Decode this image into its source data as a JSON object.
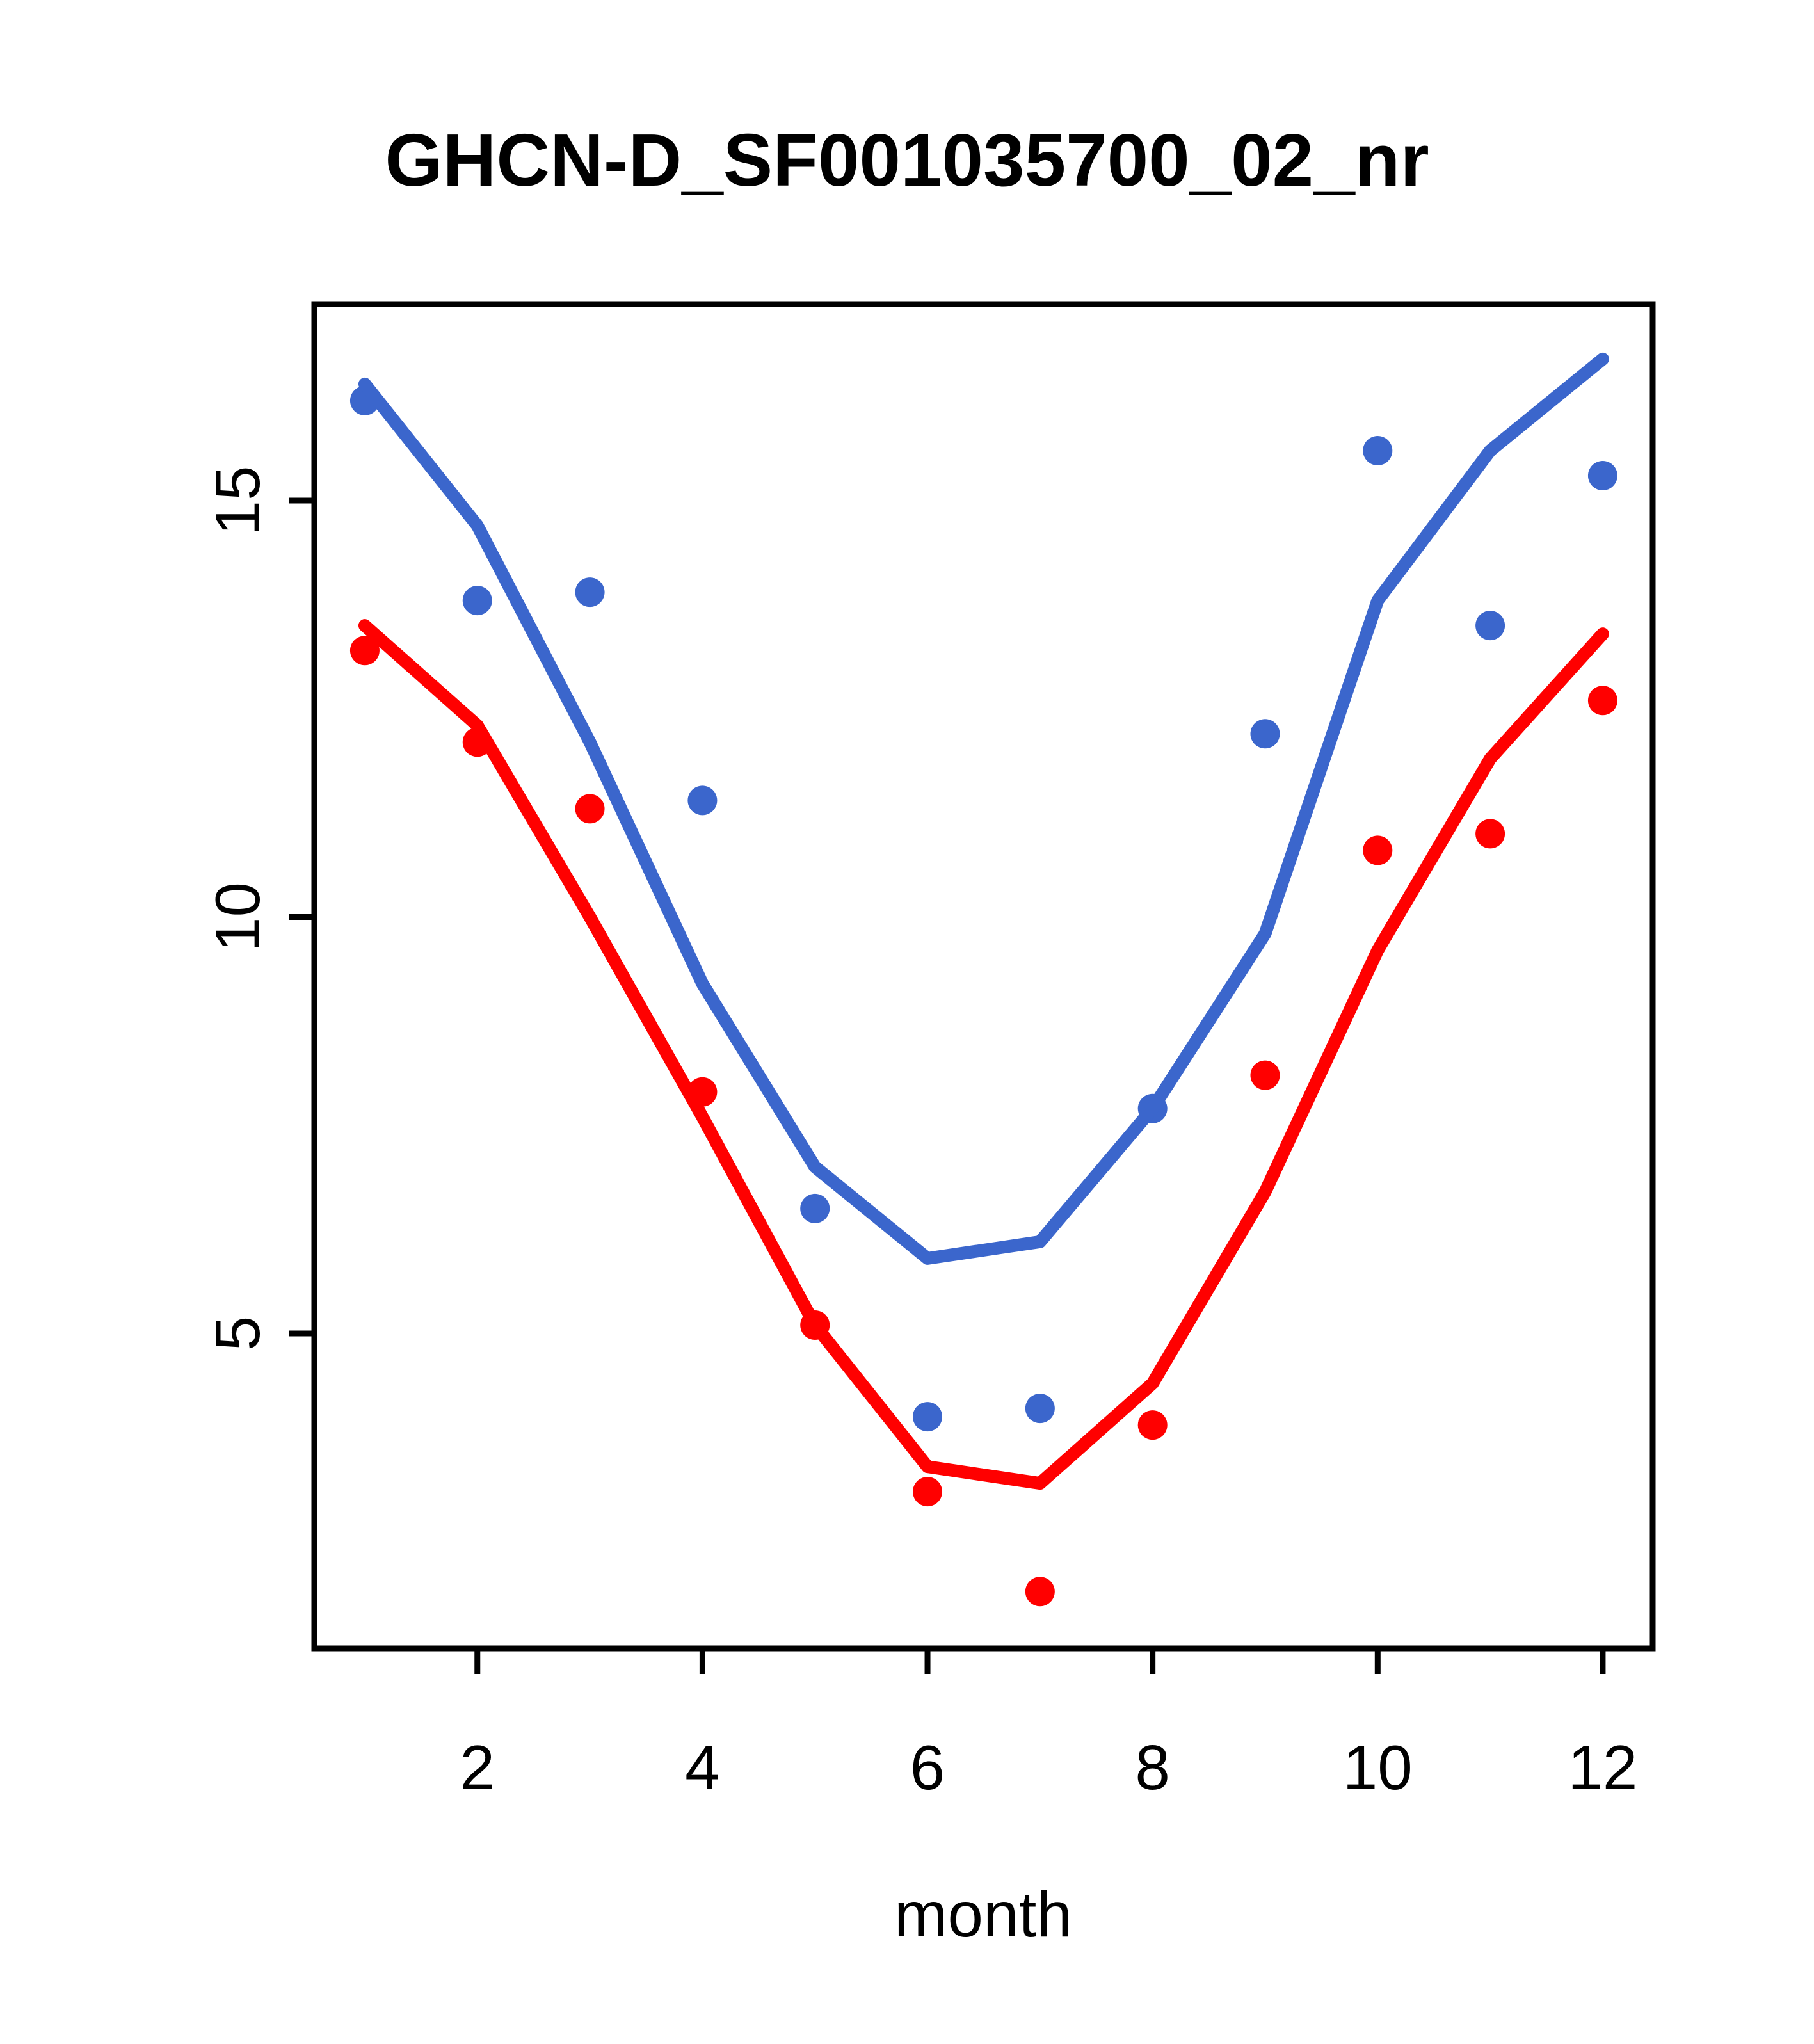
{
  "title": "GHCN-D_SF001035700_02_nr",
  "xlabel": "month",
  "colors": {
    "series_blue": "#3B66CC",
    "series_red": "#FF0000",
    "axis": "#000000",
    "background": "#FFFFFF"
  },
  "chart_data": {
    "type": "scatter",
    "title": "GHCN-D_SF001035700_02_nr",
    "xlabel": "month",
    "ylabel": "",
    "x": [
      1,
      2,
      3,
      4,
      5,
      6,
      7,
      8,
      9,
      10,
      11,
      12
    ],
    "x_ticks": [
      2,
      4,
      6,
      8,
      10,
      12
    ],
    "y_ticks": [
      5,
      10,
      15
    ],
    "xlim": [
      0.551,
      12.444
    ],
    "ylim": [
      1.218,
      17.36
    ],
    "grid": false,
    "legend": "none",
    "series": [
      {
        "name": "blue-points",
        "kind": "points",
        "color_key": "series_blue",
        "values": [
          16.2,
          13.8,
          13.9,
          11.4,
          6.5,
          4.0,
          4.1,
          7.7,
          12.2,
          15.6,
          13.5,
          15.3
        ]
      },
      {
        "name": "blue-line",
        "kind": "line",
        "color_key": "series_blue",
        "values": [
          16.4,
          14.7,
          12.1,
          9.2,
          7.0,
          5.9,
          6.1,
          7.7,
          9.8,
          13.8,
          15.6,
          16.7
        ]
      },
      {
        "name": "red-points",
        "kind": "points",
        "color_key": "series_red",
        "values": [
          13.2,
          12.1,
          11.3,
          7.9,
          5.1,
          3.1,
          1.9,
          3.9,
          8.1,
          10.8,
          11.0,
          12.6
        ]
      },
      {
        "name": "red-line",
        "kind": "line",
        "color_key": "series_red",
        "values": [
          13.5,
          12.3,
          10.0,
          7.6,
          5.1,
          3.4,
          3.2,
          4.4,
          6.7,
          9.6,
          11.9,
          13.4
        ]
      }
    ]
  }
}
